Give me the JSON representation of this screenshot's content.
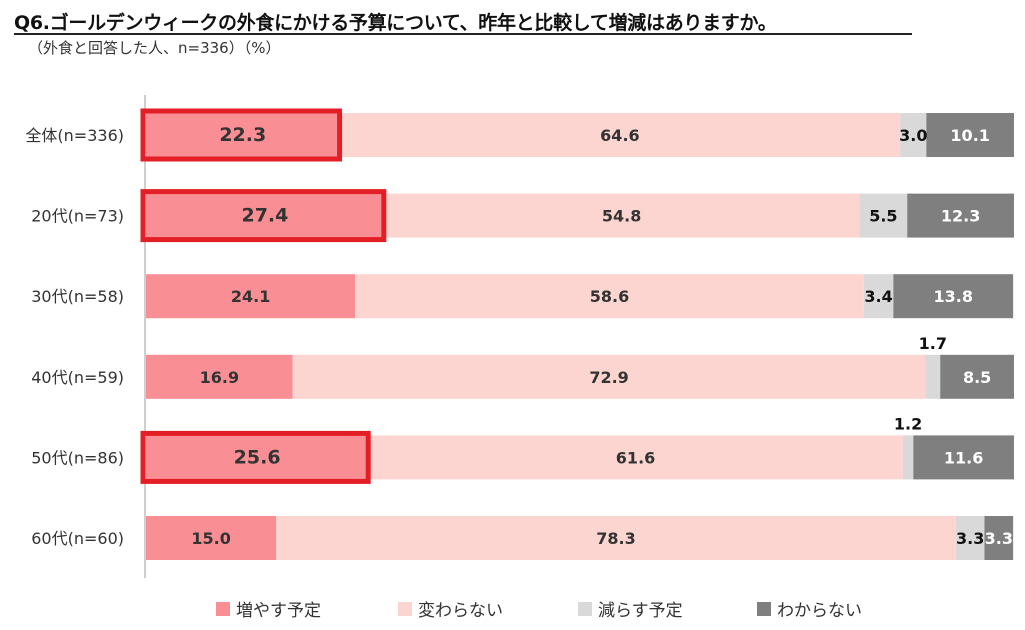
{
  "title": "Q6.ゴールデンウィークの外食にかける予算について、昨年と比較して増減はありますか。",
  "subtitle": "（外食と回答した人、n=336）（%）",
  "colors": {
    "increase": "#F98E94",
    "same": "#FDD5D0",
    "decrease": "#D9D9D9",
    "unknown": "#7F7F7F",
    "highlight": "#E41E26",
    "axis": "#BFBFBF"
  },
  "chart_data": {
    "type": "bar",
    "orientation": "horizontal",
    "stacked": true,
    "unit": "%",
    "title": "Q6.ゴールデンウィークの外食にかける予算について、昨年と比較して増減はありますか。",
    "subtitle": "（外食と回答した人、n=336）（%）",
    "categories": [
      "全体(n=336)",
      "20代(n=73)",
      "30代(n=58)",
      "40代(n=59)",
      "50代(n=86)",
      "60代(n=60)"
    ],
    "series": [
      {
        "name": "増やす予定",
        "color": "#F98E94",
        "values": [
          22.3,
          27.4,
          24.1,
          16.9,
          25.6,
          15.0
        ]
      },
      {
        "name": "変わらない",
        "color": "#FDD5D0",
        "values": [
          64.6,
          54.8,
          58.6,
          72.9,
          61.6,
          78.3
        ]
      },
      {
        "name": "減らす予定",
        "color": "#D9D9D9",
        "values": [
          3.0,
          5.5,
          3.4,
          1.7,
          1.2,
          3.3
        ]
      },
      {
        "name": "わからない",
        "color": "#7F7F7F",
        "values": [
          10.1,
          12.3,
          13.8,
          8.5,
          11.6,
          3.3
        ]
      }
    ],
    "highlighted_categories": [
      "全体(n=336)",
      "20代(n=73)",
      "50代(n=86)"
    ],
    "highlight_series": "増やす予定",
    "xlim": [
      0,
      100
    ],
    "legend_position": "bottom"
  }
}
